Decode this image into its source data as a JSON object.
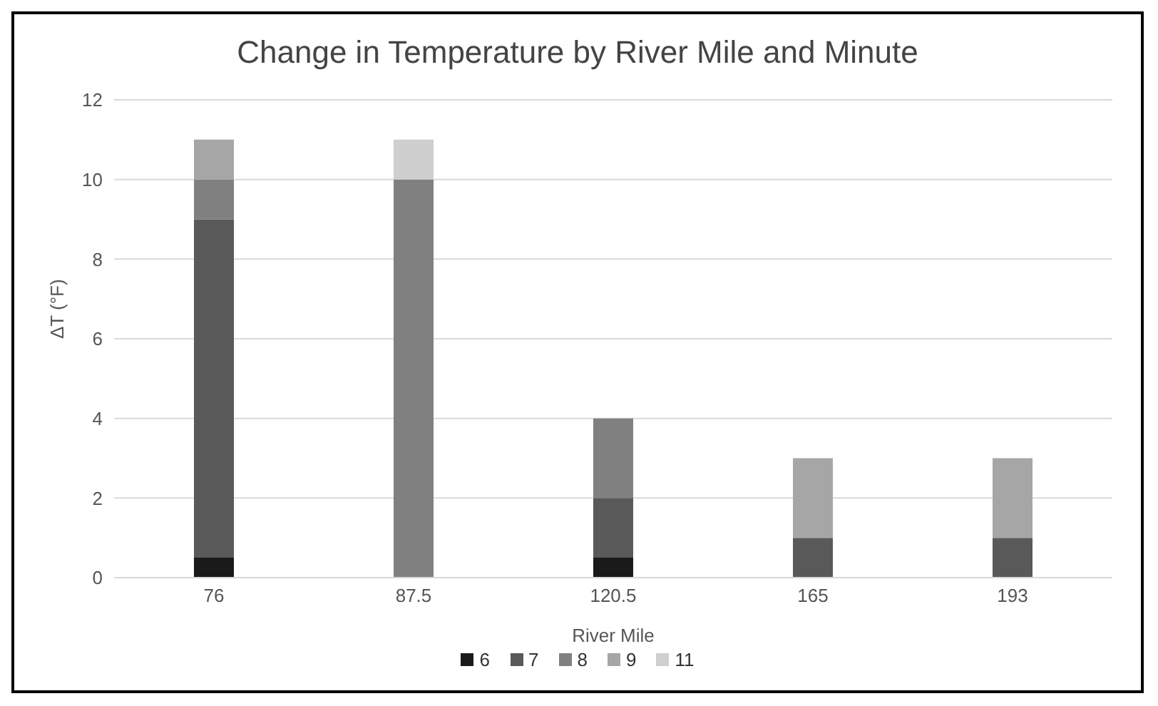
{
  "chart_data": {
    "type": "bar",
    "title": "Change in Temperature by River Mile and Minute",
    "xlabel": "River Mile",
    "ylabel": "ΔT (°F)",
    "categories": [
      "76",
      "87.5",
      "120.5",
      "165",
      "193"
    ],
    "series": [
      {
        "name": "6",
        "color": "#1a1a1a",
        "values": [
          0.5,
          0,
          0.5,
          0,
          0
        ]
      },
      {
        "name": "7",
        "color": "#595959",
        "values": [
          8.5,
          0,
          1.5,
          1,
          1
        ]
      },
      {
        "name": "8",
        "color": "#808080",
        "values": [
          1,
          10,
          2,
          0,
          0
        ]
      },
      {
        "name": "9",
        "color": "#a6a6a6",
        "values": [
          1,
          0,
          0,
          2,
          2
        ]
      },
      {
        "name": "11",
        "color": "#cfcfcf",
        "values": [
          0,
          1,
          0,
          0,
          0
        ]
      }
    ],
    "stacked": true,
    "ylim": [
      0,
      12
    ],
    "yticks": [
      0,
      2,
      4,
      6,
      8,
      10,
      12
    ],
    "grid": "y",
    "legend": "bottom"
  }
}
